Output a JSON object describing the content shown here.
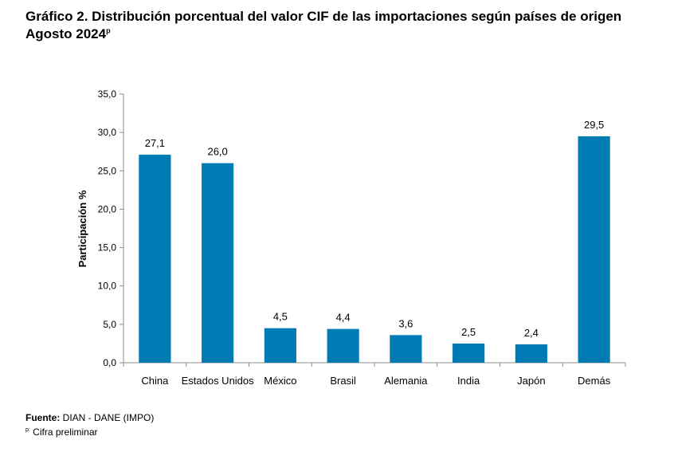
{
  "chart_data": {
    "type": "bar",
    "title_line1": "Gráfico 2. Distribución porcentual del valor CIF de las importaciones según países de origen",
    "title_line2": "Agosto 2024",
    "title_sup": "p",
    "ylabel": "Participación %",
    "xlabel": "",
    "ylim": [
      0,
      35
    ],
    "yticks": [
      "0,0",
      "5,0",
      "10,0",
      "15,0",
      "20,0",
      "25,0",
      "30,0",
      "35,0"
    ],
    "categories": [
      "China",
      "Estados Unidos",
      "México",
      "Brasil",
      "Alemania",
      "India",
      "Japón",
      "Demás"
    ],
    "values": [
      27.1,
      26.0,
      4.5,
      4.4,
      3.6,
      2.5,
      2.4,
      29.5
    ],
    "value_labels": [
      "27,1",
      "26,0",
      "4,5",
      "4,4",
      "3,6",
      "2,5",
      "2,4",
      "29,5"
    ],
    "bar_color": "#007BB4",
    "grid": false
  },
  "footer": {
    "source_label": "Fuente:",
    "source_text": " DIAN - DANE (IMPO)",
    "note_sup": "p:",
    "note_text": " Cifra preliminar"
  }
}
